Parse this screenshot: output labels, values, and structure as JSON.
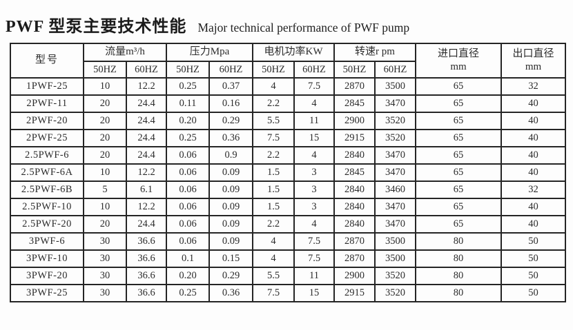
{
  "title": {
    "zh": "PWF 型泵主要技术性能",
    "en": "Major technical performance of PWF pump"
  },
  "table": {
    "col_model": "型号",
    "groups": [
      {
        "label": "流量m³/h",
        "sub": [
          "50HZ",
          "60HZ"
        ]
      },
      {
        "label": "压力Mpa",
        "sub": [
          "50HZ",
          "60HZ"
        ]
      },
      {
        "label": "电机功率KW",
        "sub": [
          "50HZ",
          "60HZ"
        ]
      },
      {
        "label": "转速r pm",
        "sub": [
          "50HZ",
          "60HZ"
        ]
      }
    ],
    "col_inlet": {
      "name": "进口直径",
      "unit": "mm"
    },
    "col_outlet": {
      "name": "出口直径",
      "unit": "mm"
    },
    "rows": [
      [
        "1PWF-25",
        "10",
        "12.2",
        "0.25",
        "0.37",
        "4",
        "7.5",
        "2870",
        "3500",
        "65",
        "32"
      ],
      [
        "2PWF-11",
        "20",
        "24.4",
        "0.11",
        "0.16",
        "2.2",
        "4",
        "2845",
        "3470",
        "65",
        "40"
      ],
      [
        "2PWF-20",
        "20",
        "24.4",
        "0.20",
        "0.29",
        "5.5",
        "11",
        "2900",
        "3520",
        "65",
        "40"
      ],
      [
        "2PWF-25",
        "20",
        "24.4",
        "0.25",
        "0.36",
        "7.5",
        "15",
        "2915",
        "3520",
        "65",
        "40"
      ],
      [
        "2.5PWF-6",
        "20",
        "24.4",
        "0.06",
        "0.9",
        "2.2",
        "4",
        "2840",
        "3470",
        "65",
        "40"
      ],
      [
        "2.5PWF-6A",
        "10",
        "12.2",
        "0.06",
        "0.09",
        "1.5",
        "3",
        "2845",
        "3470",
        "65",
        "40"
      ],
      [
        "2.5PWF-6B",
        "5",
        "6.1",
        "0.06",
        "0.09",
        "1.5",
        "3",
        "2840",
        "3460",
        "65",
        "32"
      ],
      [
        "2.5PWF-10",
        "10",
        "12.2",
        "0.06",
        "0.09",
        "1.5",
        "3",
        "2840",
        "3470",
        "65",
        "40"
      ],
      [
        "2.5PWF-20",
        "20",
        "24.4",
        "0.06",
        "0.09",
        "2.2",
        "4",
        "2840",
        "3470",
        "65",
        "40"
      ],
      [
        "3PWF-6",
        "30",
        "36.6",
        "0.06",
        "0.09",
        "4",
        "7.5",
        "2870",
        "3500",
        "80",
        "50"
      ],
      [
        "3PWF-10",
        "30",
        "36.6",
        "0.1",
        "0.15",
        "4",
        "7.5",
        "2870",
        "3500",
        "80",
        "50"
      ],
      [
        "3PWF-20",
        "30",
        "36.6",
        "0.20",
        "0.29",
        "5.5",
        "11",
        "2900",
        "3520",
        "80",
        "50"
      ],
      [
        "3PWF-25",
        "30",
        "36.6",
        "0.25",
        "0.36",
        "7.5",
        "15",
        "2915",
        "3520",
        "80",
        "50"
      ]
    ]
  }
}
